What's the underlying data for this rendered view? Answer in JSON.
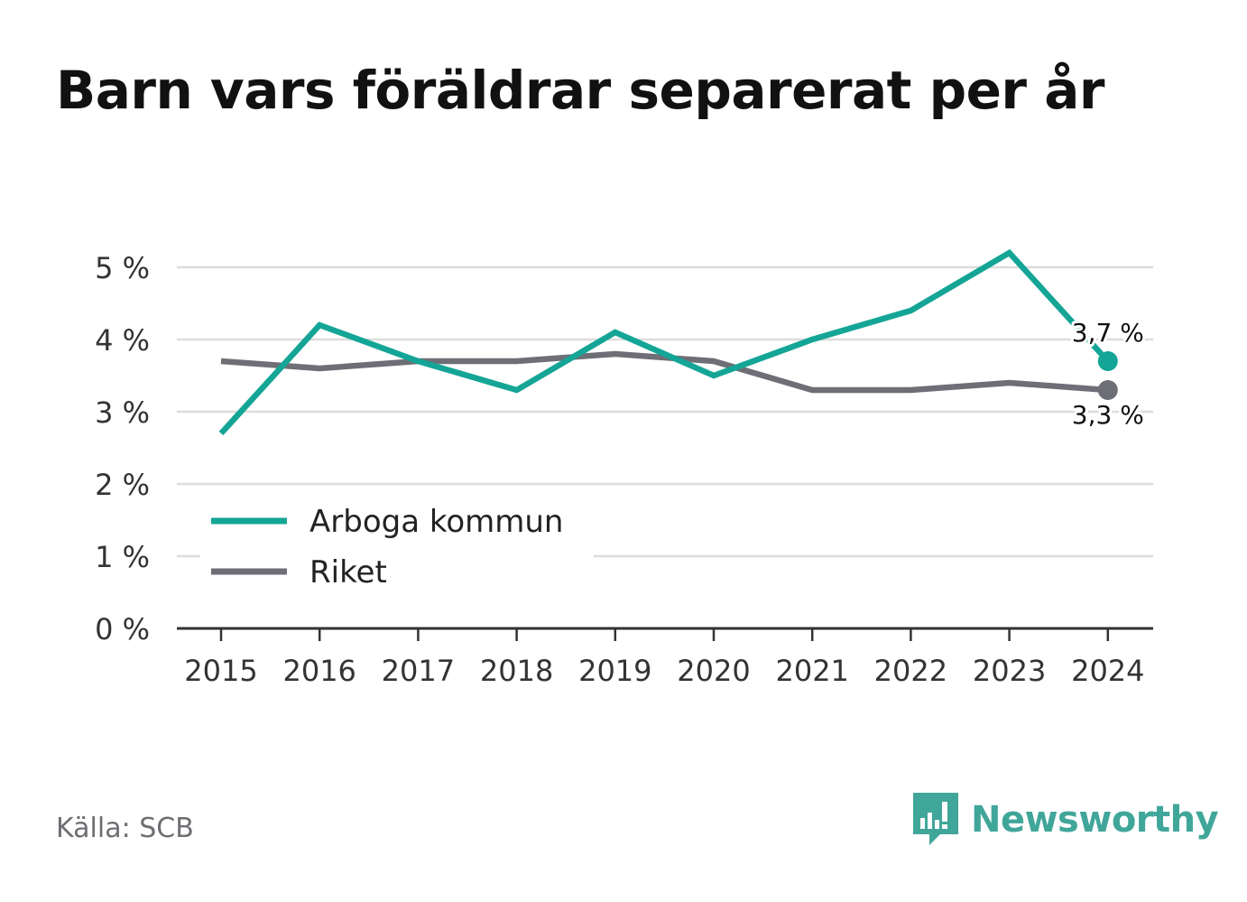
{
  "title": "Barn vars föräldrar separerat per år",
  "source": "Källa: SCB",
  "brand": "Newsworthy",
  "colors": {
    "arboga": "#14a596",
    "riket": "#6e6e76",
    "grid": "#dcdcdc",
    "axis": "#333333",
    "brand": "#41a69a"
  },
  "chart_data": {
    "type": "line",
    "title": "Barn vars föräldrar separerat per år",
    "x": [
      "2015",
      "2016",
      "2017",
      "2018",
      "2019",
      "2020",
      "2021",
      "2022",
      "2023",
      "2024"
    ],
    "y_ticks": [
      "0 %",
      "1 %",
      "2 %",
      "3 %",
      "4 %",
      "5 %"
    ],
    "ylim": [
      0,
      5
    ],
    "grid": true,
    "legend": "bottom-left",
    "series": [
      {
        "name": "Arboga kommun",
        "values": [
          2.7,
          4.2,
          3.7,
          3.3,
          4.1,
          3.5,
          4.0,
          4.4,
          5.2,
          3.7
        ],
        "end_label": "3,7 %"
      },
      {
        "name": "Riket",
        "values": [
          3.7,
          3.6,
          3.7,
          3.7,
          3.8,
          3.7,
          3.3,
          3.3,
          3.4,
          3.3
        ],
        "end_label": "3,3 %"
      }
    ]
  }
}
